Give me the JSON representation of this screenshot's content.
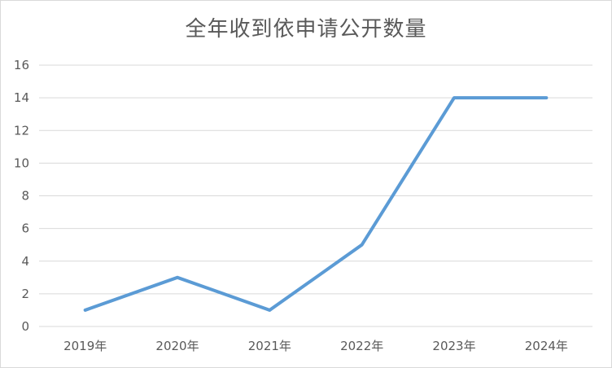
{
  "chart_data": {
    "type": "line",
    "title": "全年收到依申请公开数量",
    "xlabel": "",
    "ylabel": "",
    "categories": [
      "2019年",
      "2020年",
      "2021年",
      "2022年",
      "2023年",
      "2024年"
    ],
    "series": [
      {
        "values": [
          1,
          3,
          1,
          5,
          14,
          14
        ],
        "color": "#5b9bd5"
      }
    ],
    "ylim": [
      0,
      16
    ],
    "yticks": [
      "0",
      "2",
      "4",
      "6",
      "8",
      "10",
      "12",
      "14",
      "16"
    ],
    "grid": true,
    "legend": "none",
    "colors": {
      "gridline": "#d9d9d9",
      "text": "#595959"
    }
  }
}
